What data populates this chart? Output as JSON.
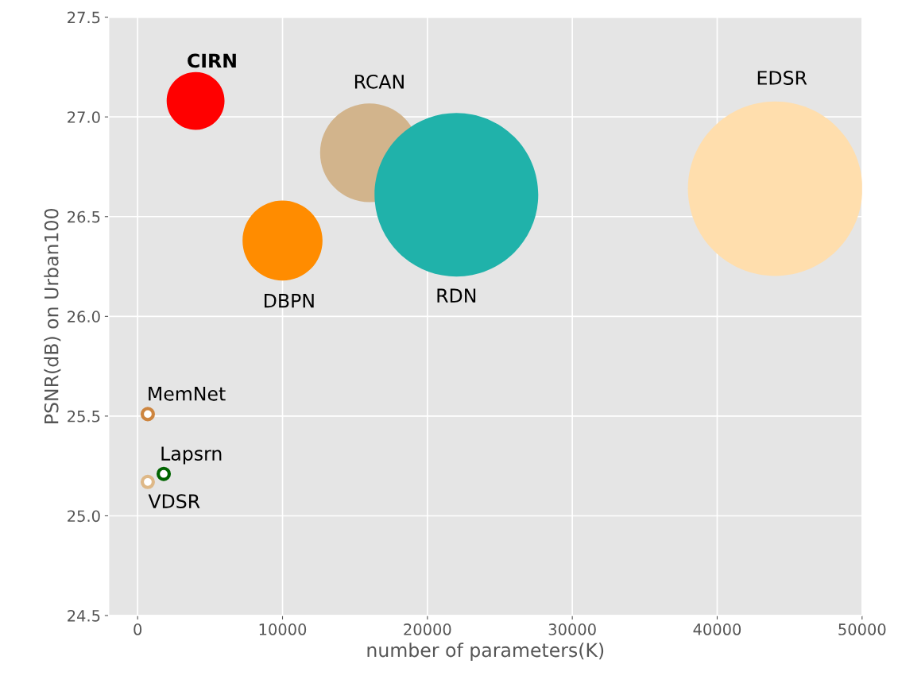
{
  "chart_data": {
    "type": "bubble",
    "xlabel": "number of parameters(K)",
    "ylabel": "PSNR(dB) on Urban100",
    "series": [
      {
        "name": "CIRN",
        "color": "#ff0000",
        "x": [
          4000
        ],
        "values": [
          27.08
        ],
        "sizes": [
          0.11
        ]
      },
      {
        "name": "RCAN",
        "color": "#d2b48c",
        "x": [
          16000
        ],
        "values": [
          26.82
        ],
        "sizes": [
          0.32
        ]
      },
      {
        "name": "RDN",
        "color": "#20b2aa",
        "x": [
          22000
        ],
        "values": [
          26.61
        ],
        "sizes": [
          0.88
        ]
      },
      {
        "name": "EDSR",
        "color": "#ffdead",
        "x": [
          44000
        ],
        "values": [
          26.64
        ],
        "sizes": [
          1
        ]
      },
      {
        "name": "DBPN",
        "color": "#ff8c00",
        "x": [
          10000
        ],
        "values": [
          26.38
        ],
        "sizes": [
          0.21
        ]
      },
      {
        "name": "MemNet",
        "color": "#cd853f",
        "x": [
          700
        ],
        "values": [
          25.51
        ],
        "sizes": [
          0.004
        ]
      },
      {
        "name": "Lapsrn",
        "color": "#006400",
        "x": [
          1800
        ],
        "values": [
          25.21
        ],
        "sizes": [
          0.004
        ]
      },
      {
        "name": "VDSR",
        "color": "#deb887",
        "x": [
          700
        ],
        "values": [
          25.17
        ],
        "sizes": [
          0.004
        ]
      }
    ],
    "xlim": [
      -2000,
      50000
    ],
    "xticks": [
      0,
      10000,
      20000,
      30000,
      40000,
      50000
    ],
    "ylim": [
      24.5,
      27.5
    ],
    "yticks": [
      24.5,
      {
        "value": 25,
        "label": "25.0"
      },
      25.5,
      {
        "value": 26,
        "label": "26.0"
      },
      26.5,
      {
        "value": 27,
        "label": "27.0"
      },
      27.5
    ],
    "grid": true
  }
}
